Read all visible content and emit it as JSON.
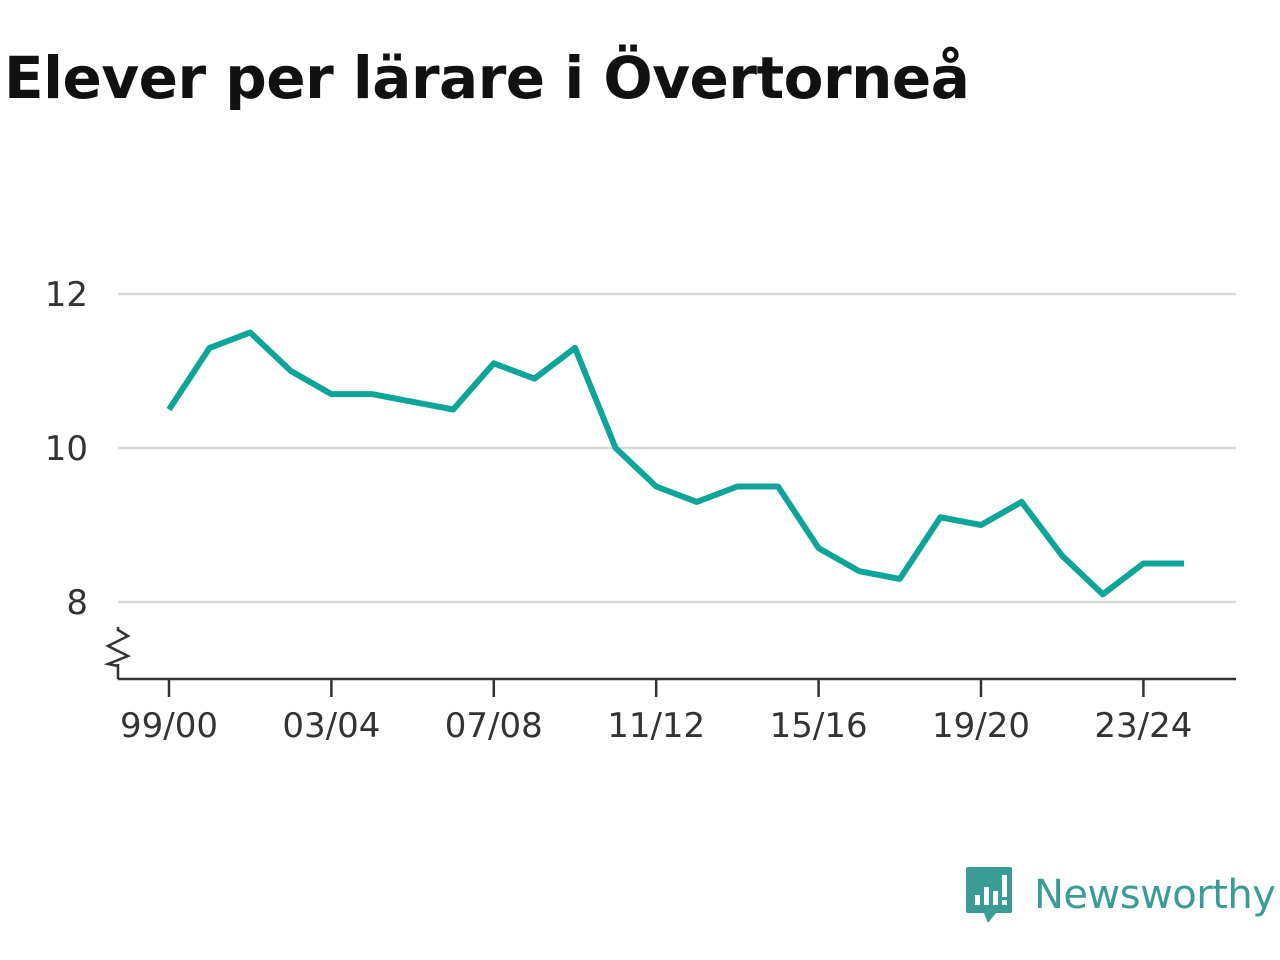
{
  "title": "Elever per lärare i Övertorneå",
  "brand": {
    "name": "Newsworthy",
    "color": "#3a9c94"
  },
  "chart_data": {
    "type": "line",
    "title": "Elever per lärare i Övertorneå",
    "xlabel": "",
    "ylabel": "",
    "ylim": [
      7.0,
      12.0
    ],
    "y_axis_break": true,
    "yticks": [
      8,
      10,
      12
    ],
    "x_tick_labels": [
      "99/00",
      "03/04",
      "07/08",
      "11/12",
      "15/16",
      "19/20",
      "23/24"
    ],
    "grid": true,
    "line_color": "#0da597",
    "x": [
      "99/00",
      "00/01",
      "01/02",
      "02/03",
      "03/04",
      "04/05",
      "05/06",
      "06/07",
      "07/08",
      "08/09",
      "09/10",
      "10/11",
      "11/12",
      "12/13",
      "13/14",
      "14/15",
      "15/16",
      "16/17",
      "17/18",
      "18/19",
      "19/20",
      "20/21",
      "21/22",
      "22/23",
      "23/24",
      "24/25"
    ],
    "values": [
      10.5,
      11.3,
      11.5,
      11.0,
      10.7,
      10.7,
      10.6,
      10.5,
      11.1,
      10.9,
      11.3,
      10.0,
      9.5,
      9.3,
      9.5,
      9.5,
      8.7,
      8.4,
      8.3,
      9.1,
      9.0,
      9.3,
      8.6,
      8.1,
      8.5,
      8.5
    ]
  }
}
